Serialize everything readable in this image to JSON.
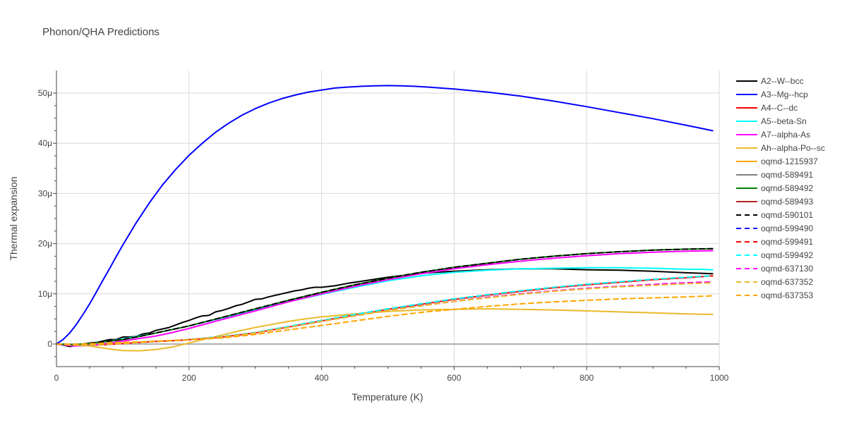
{
  "chart_data": {
    "type": "line",
    "title": "Phonon/QHA Predictions",
    "xlabel": "Temperature (K)",
    "ylabel": "Thermal expansion",
    "xlim": [
      0,
      1000
    ],
    "ylim": [
      -4.5,
      54.5
    ],
    "xticks": [
      0,
      200,
      400,
      600,
      800,
      1000
    ],
    "xtick_labels": [
      "0",
      "200",
      "400",
      "600",
      "800",
      "1000"
    ],
    "yticks": [
      0,
      10,
      20,
      30,
      40,
      50
    ],
    "ytick_labels": [
      "0",
      "10μ",
      "20μ",
      "30μ",
      "40μ",
      "50μ"
    ],
    "grid": true,
    "legend_position": "right",
    "series": [
      {
        "name": "A2--W--bcc",
        "color": "#000000",
        "dash": "solid",
        "x": [
          0,
          10,
          20,
          30,
          40,
          50,
          60,
          70,
          80,
          90,
          100,
          110,
          120,
          130,
          140,
          150,
          160,
          170,
          180,
          190,
          200,
          210,
          220,
          230,
          240,
          250,
          260,
          270,
          280,
          290,
          300,
          310,
          320,
          330,
          340,
          350,
          360,
          370,
          380,
          390,
          400,
          420,
          440,
          460,
          480,
          500,
          550,
          600,
          650,
          700,
          750,
          800,
          850,
          900,
          950,
          990
        ],
        "y": [
          0,
          -0.2,
          -0.5,
          -0.3,
          0,
          0.2,
          0.3,
          0.6,
          0.9,
          0.9,
          1.4,
          1.4,
          1.5,
          2.0,
          2.2,
          2.7,
          3.0,
          3.3,
          3.8,
          4.3,
          4.7,
          5.2,
          5.6,
          5.7,
          6.4,
          6.7,
          7.1,
          7.6,
          7.9,
          8.4,
          8.9,
          9.0,
          9.4,
          9.7,
          10.0,
          10.3,
          10.6,
          10.8,
          11.1,
          11.3,
          11.3,
          11.6,
          12.1,
          12.5,
          12.9,
          13.3,
          14.1,
          14.5,
          14.8,
          15.0,
          15.0,
          14.8,
          14.7,
          14.5,
          14.2,
          14.0
        ]
      },
      {
        "name": "A3--Mg--hcp",
        "color": "#0000ff",
        "dash": "solid",
        "x": [
          0,
          10,
          20,
          30,
          40,
          50,
          60,
          70,
          80,
          90,
          100,
          120,
          140,
          160,
          180,
          200,
          220,
          240,
          260,
          280,
          300,
          320,
          340,
          360,
          380,
          400,
          420,
          440,
          460,
          480,
          500,
          520,
          540,
          560,
          580,
          600,
          650,
          700,
          750,
          800,
          850,
          900,
          950,
          990
        ],
        "y": [
          0,
          0.9,
          2.2,
          3.9,
          5.9,
          8.0,
          10.3,
          12.7,
          15.0,
          17.4,
          19.7,
          24.1,
          28.1,
          31.7,
          34.8,
          37.6,
          40.0,
          42.2,
          44.0,
          45.6,
          46.9,
          48.0,
          48.9,
          49.6,
          50.2,
          50.6,
          51.0,
          51.2,
          51.35,
          51.45,
          51.5,
          51.45,
          51.35,
          51.2,
          51.0,
          50.8,
          50.2,
          49.4,
          48.4,
          47.3,
          46.1,
          44.9,
          43.6,
          42.5
        ]
      },
      {
        "name": "A4--C--dc",
        "color": "#ff0000",
        "dash": "solid",
        "x": [
          0,
          25,
          50,
          75,
          100,
          125,
          150,
          175,
          200,
          250,
          300,
          350,
          400,
          450,
          500,
          550,
          600,
          650,
          700,
          750,
          800,
          850,
          900,
          950,
          990
        ],
        "y": [
          0,
          -0.25,
          -0.25,
          -0.1,
          0.1,
          0.3,
          0.5,
          0.65,
          0.85,
          1.4,
          2.2,
          3.4,
          4.6,
          5.8,
          6.9,
          7.9,
          8.9,
          9.7,
          10.5,
          11.2,
          11.8,
          12.3,
          12.8,
          13.2,
          13.6
        ]
      },
      {
        "name": "A5--beta-Sn",
        "color": "#00ffff",
        "dash": "solid",
        "x": [
          0,
          25,
          50,
          75,
          100,
          125,
          150,
          175,
          200,
          250,
          300,
          350,
          400,
          450,
          500,
          550,
          600,
          650,
          700,
          750,
          800,
          850,
          900,
          950,
          970,
          990
        ],
        "y": [
          0,
          -0.1,
          0.1,
          0.5,
          1.0,
          1.6,
          2.2,
          2.9,
          3.6,
          5.2,
          6.8,
          8.4,
          9.9,
          11.3,
          12.6,
          13.6,
          14.3,
          14.7,
          15.0,
          15.1,
          15.2,
          15.2,
          15.1,
          14.9,
          14.9,
          14.8
        ]
      },
      {
        "name": "A7--alpha-As",
        "color": "#ff00ff",
        "dash": "solid",
        "x": [
          0,
          25,
          50,
          75,
          100,
          125,
          150,
          175,
          200,
          250,
          300,
          350,
          400,
          450,
          500,
          550,
          600,
          650,
          700,
          750,
          800,
          850,
          900,
          950,
          990
        ],
        "y": [
          0,
          -0.4,
          -0.3,
          0.1,
          0.6,
          1.1,
          1.6,
          2.3,
          3.1,
          4.9,
          6.6,
          8.4,
          10.0,
          11.5,
          12.8,
          14.0,
          15.0,
          15.8,
          16.5,
          17.1,
          17.6,
          18.0,
          18.3,
          18.5,
          18.6
        ]
      },
      {
        "name": "Ah--alpha-Po--sc",
        "color": "#ebba2a",
        "dash": "solid",
        "x": [
          0,
          25,
          50,
          75,
          100,
          125,
          150,
          175,
          200,
          225,
          250,
          275,
          300,
          325,
          350,
          375,
          400,
          450,
          500,
          550,
          600,
          650,
          700,
          750,
          800,
          850,
          900,
          950,
          990
        ],
        "y": [
          0,
          -0.2,
          -0.4,
          -0.9,
          -1.3,
          -1.35,
          -1.1,
          -0.6,
          0.2,
          1.0,
          1.8,
          2.6,
          3.3,
          3.9,
          4.5,
          5.0,
          5.4,
          6.0,
          6.5,
          6.8,
          6.9,
          7.0,
          6.9,
          6.8,
          6.6,
          6.4,
          6.2,
          6.0,
          5.9
        ]
      },
      {
        "name": "oqmd-1215937",
        "color": "#ffa500",
        "dash": "solid",
        "x": [],
        "y": []
      },
      {
        "name": "oqmd-589491",
        "color": "#808080",
        "dash": "solid",
        "x": [],
        "y": []
      },
      {
        "name": "oqmd-589492",
        "color": "#008000",
        "dash": "solid",
        "x": [
          0,
          25,
          50,
          75,
          100,
          125,
          150,
          175,
          200,
          250,
          300,
          350,
          400,
          450,
          500,
          550,
          600,
          650,
          700,
          750,
          800,
          850,
          900,
          950,
          990
        ],
        "y": [
          0,
          -0.1,
          0.1,
          0.5,
          0.9,
          1.5,
          2.2,
          2.9,
          3.6,
          5.3,
          7.0,
          8.7,
          10.3,
          11.8,
          13.1,
          14.3,
          15.3,
          16.1,
          16.9,
          17.5,
          18.0,
          18.4,
          18.7,
          18.9,
          19.0
        ]
      },
      {
        "name": "oqmd-589493",
        "color": "#b22222",
        "dash": "solid",
        "x": [],
        "y": []
      },
      {
        "name": "oqmd-590101",
        "color": "#000000",
        "dash": "dash",
        "x": [
          0,
          25,
          50,
          75,
          100,
          125,
          150,
          175,
          200,
          250,
          300,
          350,
          400,
          450,
          500,
          550,
          600,
          650,
          700,
          750,
          800,
          850,
          900,
          950,
          990
        ],
        "y": [
          0,
          -0.1,
          0.1,
          0.5,
          0.9,
          1.5,
          2.2,
          2.9,
          3.6,
          5.3,
          7.0,
          8.7,
          10.3,
          11.8,
          13.1,
          14.3,
          15.3,
          16.1,
          16.9,
          17.5,
          18.0,
          18.4,
          18.7,
          18.9,
          19.0
        ]
      },
      {
        "name": "oqmd-599490",
        "color": "#0000ff",
        "dash": "dash",
        "x": [],
        "y": []
      },
      {
        "name": "oqmd-599491",
        "color": "#ff0000",
        "dash": "dash",
        "x": [
          0,
          25,
          50,
          75,
          100,
          125,
          150,
          175,
          200,
          250,
          300,
          350,
          400,
          450,
          500,
          550,
          600,
          650,
          700,
          750,
          800,
          850,
          900,
          950,
          990
        ],
        "y": [
          0,
          -0.2,
          -0.2,
          -0.05,
          0.15,
          0.35,
          0.55,
          0.7,
          0.9,
          1.5,
          2.3,
          3.5,
          4.7,
          5.9,
          7.0,
          8.0,
          9.0,
          9.8,
          10.6,
          11.3,
          11.9,
          12.4,
          12.9,
          13.3,
          13.6
        ]
      },
      {
        "name": "oqmd-599492",
        "color": "#00ffff",
        "dash": "dash",
        "x": [
          0,
          25,
          50,
          75,
          100,
          125,
          150,
          175,
          200,
          250,
          300,
          350,
          400,
          450,
          500,
          550,
          600,
          650,
          700,
          750,
          800,
          850,
          900,
          950,
          990
        ],
        "y": [
          0,
          -0.2,
          -0.2,
          -0.05,
          0.15,
          0.35,
          0.55,
          0.7,
          0.9,
          1.5,
          2.3,
          3.5,
          4.7,
          5.9,
          7.0,
          8.0,
          9.0,
          9.8,
          10.6,
          11.3,
          11.9,
          12.4,
          12.9,
          13.3,
          13.6
        ]
      },
      {
        "name": "oqmd-637130",
        "color": "#ff00ff",
        "dash": "dash",
        "x": [
          0,
          25,
          50,
          75,
          100,
          125,
          150,
          175,
          200,
          250,
          300,
          350,
          400,
          450,
          500,
          550,
          600,
          650,
          700,
          750,
          800,
          850,
          900,
          950,
          990
        ],
        "y": [
          0,
          -0.2,
          -0.2,
          -0.05,
          0.1,
          0.3,
          0.5,
          0.65,
          0.85,
          1.4,
          2.2,
          3.3,
          4.5,
          5.6,
          6.7,
          7.6,
          8.5,
          9.3,
          10.0,
          10.6,
          11.1,
          11.5,
          11.9,
          12.2,
          12.4
        ]
      },
      {
        "name": "oqmd-637352",
        "color": "#ebba2a",
        "dash": "dash",
        "x": [
          0,
          25,
          50,
          75,
          100,
          125,
          150,
          175,
          200,
          250,
          300,
          350,
          400,
          450,
          500,
          550,
          600,
          650,
          700,
          750,
          800,
          850,
          900,
          950,
          990
        ],
        "y": [
          0,
          -0.2,
          -0.2,
          -0.05,
          0.1,
          0.3,
          0.5,
          0.65,
          0.85,
          1.4,
          2.2,
          3.3,
          4.5,
          5.6,
          6.7,
          7.6,
          8.5,
          9.2,
          9.9,
          10.5,
          11.0,
          11.4,
          11.7,
          12.0,
          12.2
        ]
      },
      {
        "name": "oqmd-637353",
        "color": "#ffa500",
        "dash": "dash",
        "x": [
          0,
          25,
          50,
          75,
          100,
          125,
          150,
          175,
          200,
          250,
          300,
          350,
          400,
          450,
          500,
          550,
          600,
          650,
          700,
          750,
          800,
          850,
          900,
          950,
          990
        ],
        "y": [
          0,
          -0.05,
          0.05,
          0.2,
          0.35,
          0.45,
          0.55,
          0.7,
          0.85,
          1.2,
          1.9,
          2.8,
          3.7,
          4.6,
          5.5,
          6.3,
          6.9,
          7.5,
          8.0,
          8.4,
          8.7,
          9.0,
          9.2,
          9.4,
          9.6
        ]
      }
    ]
  }
}
